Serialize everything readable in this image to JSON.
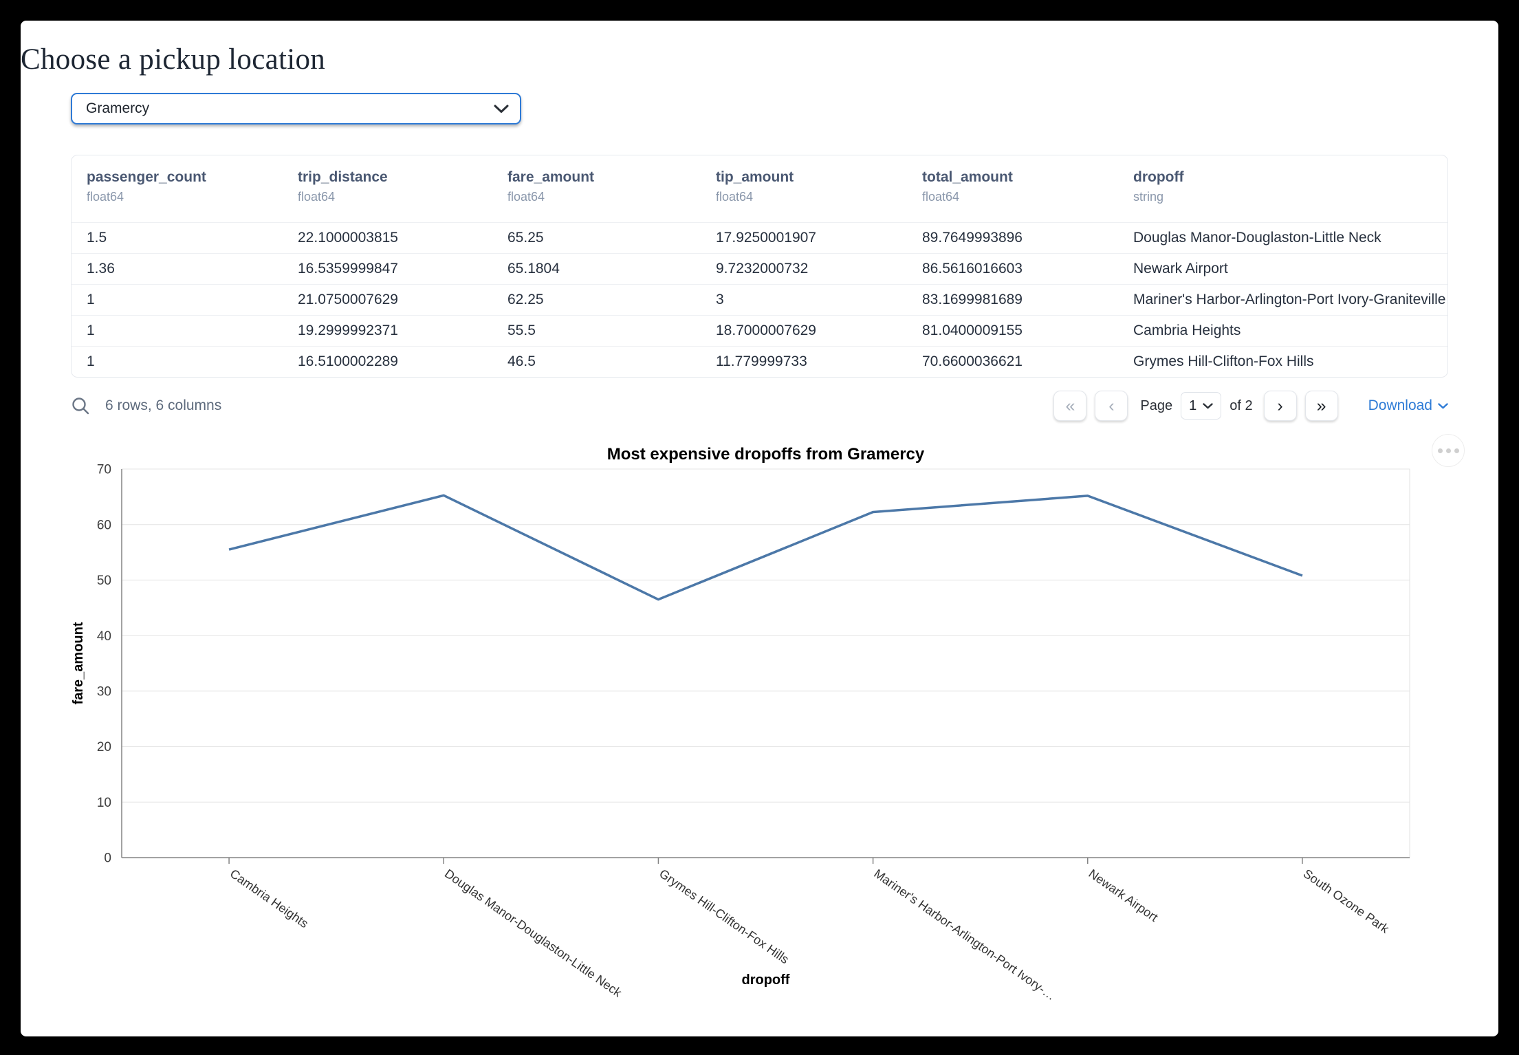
{
  "page": {
    "title": "Choose a pickup location"
  },
  "pickup_select": {
    "value": "Gramercy"
  },
  "table": {
    "columns": [
      {
        "name": "passenger_count",
        "type": "float64"
      },
      {
        "name": "trip_distance",
        "type": "float64"
      },
      {
        "name": "fare_amount",
        "type": "float64"
      },
      {
        "name": "tip_amount",
        "type": "float64"
      },
      {
        "name": "total_amount",
        "type": "float64"
      },
      {
        "name": "dropoff",
        "type": "string"
      }
    ],
    "rows": [
      [
        "1.5",
        "22.1000003815",
        "65.25",
        "17.9250001907",
        "89.7649993896",
        "Douglas Manor-Douglaston-Little Neck"
      ],
      [
        "1.36",
        "16.5359999847",
        "65.1804",
        "9.7232000732",
        "86.5616016603",
        "Newark Airport"
      ],
      [
        "1",
        "21.0750007629",
        "62.25",
        "3",
        "83.1699981689",
        "Mariner's Harbor-Arlington-Port Ivory-Graniteville"
      ],
      [
        "1",
        "19.2999992371",
        "55.5",
        "18.7000007629",
        "81.0400009155",
        "Cambria Heights"
      ],
      [
        "1",
        "16.5100002289",
        "46.5",
        "11.779999733",
        "70.6600036621",
        "Grymes Hill-Clifton-Fox Hills"
      ]
    ]
  },
  "table_footer": {
    "summary": "6 rows, 6 columns",
    "page_label": "Page",
    "page_value": "1",
    "total_pages_label": "of 2",
    "download_label": "Download"
  },
  "icons": {
    "first_page": "«",
    "prev_page": "‹",
    "next_page": "›",
    "last_page": "»"
  },
  "colors": {
    "line": "#4c78a8",
    "accent_blue": "#2e7bd6",
    "select_border": "#2e7ad6",
    "grid": "#e4e4e4",
    "axis": "#848484"
  },
  "chart_data": {
    "type": "line",
    "title": "Most expensive dropoffs from Gramercy",
    "xlabel": "dropoff",
    "ylabel": "fare_amount",
    "categories": [
      "Cambria Heights",
      "Douglas Manor-Douglaston-Little Neck",
      "Grymes Hill-Clifton-Fox Hills",
      "Mariner's Harbor-Arlington-Port Ivory-…",
      "Newark Airport",
      "South Ozone Park"
    ],
    "values": [
      55.5,
      65.25,
      46.5,
      62.25,
      65.1804,
      50.8
    ],
    "ylim": [
      0,
      70
    ],
    "yticks": [
      0,
      10,
      20,
      30,
      40,
      50,
      60,
      70
    ],
    "grid": true,
    "legend": "none",
    "x_tick_label_angle_deg": 35,
    "line_color": "#4c78a8"
  }
}
